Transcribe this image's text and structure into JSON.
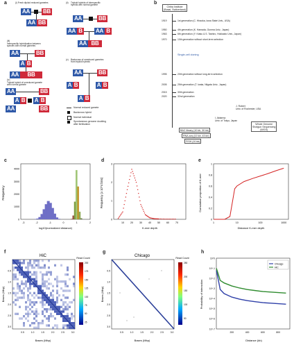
{
  "panel_a": {
    "label": "a",
    "sub_i": "(i)",
    "sub_i_text": "Fresh diploid reduced gametes",
    "sub_ii": "(ii)",
    "sub_ii_text": "Triploid hybrids of interspecific\nhybrids with normal gamete",
    "sub_iii": "(iii)",
    "sub_iii_text": "Interspecific hybridization between\nspecies with normal gametes",
    "sub_iv": "(iv)",
    "sub_iv_text": "Triploid hybrid of unreduced gamete\nwith normal gamete",
    "sub_v": "(v)",
    "sub_v_text": "Backcross of unreduced gametes\nfrom triploid hybrids",
    "legend": {
      "l1": "Normal reduced gamete",
      "l2": "Backcross hybrid",
      "l3": "Normal individual",
      "l4": "Spontaneous genome doubling\nafter fertilization"
    }
  },
  "panel_b": {
    "label": "b",
    "header": "Chiba Institute\n(Bosai, Switzerland)",
    "timeline": [
      {
        "year": "1919",
        "text": "1st generation (C. Hiraoka, Iowa State Univ., USA)"
      },
      {
        "year": "1950",
        "text": "4th generation (K. Hamada, Gunma Univ., Japan)"
      },
      {
        "year": "1963",
        "text": "6th generation (Y. Katsu & S. Tashiro, Hokkaido Univ., Japan)"
      },
      {
        "year": "1970",
        "text": "10th generation without short-term selection"
      },
      {
        "year": "1995",
        "text": "20th generation without long-term selection"
      },
      {
        "year": "2005",
        "text": "25th generation (T. Iwata, Niigata Univ., Japan)"
      },
      {
        "year": "2015",
        "text": "30th generation"
      },
      {
        "year": "2020",
        "text": "32nd generation"
      }
    ],
    "middle_note": "Single-cell cloning",
    "side_note_1": "J. Robert\nUniv. of Rochester, USA",
    "side_note_2": "I. Aktarma\nUniv. of Tokyo, Japan",
    "side_note_3": "Whole Genome\nShotgun Sequencing\n(WGS)",
    "methods": [
      "BAC library (10 kb, 30 kb)",
      "RNA-seq (10 kb, 43 kb)",
      "FISH (10 kb)"
    ]
  },
  "panel_c": {
    "label": "c",
    "ylabel": "Frequency",
    "xlabel": "log10(normalized distance)",
    "yticks": [
      "0",
      "1000",
      "2000",
      "3000",
      "4000"
    ],
    "xticks": [
      "-3",
      "-2",
      "-1",
      "0",
      "1",
      "2"
    ]
  },
  "panel_d": {
    "label": "d",
    "ylabel": "Frequency (x 10^4 bins)",
    "xlabel": "K-mer depth",
    "yticks": [
      "0",
      "1",
      "2",
      "3"
    ],
    "xticks": [
      "10",
      "20",
      "30",
      "40",
      "50",
      "60",
      "70"
    ]
  },
  "panel_e": {
    "label": "e",
    "ylabel": "Cumulative proportion of K-mer",
    "xlabel": "Distance K-mer depth",
    "yticks": [
      "0",
      "0.2",
      "0.4",
      "0.6",
      "0.8",
      "1"
    ],
    "xticks": [
      "1",
      "10",
      "100",
      "1000"
    ]
  },
  "panel_f": {
    "label": "f",
    "title": "HiC",
    "ylabel": "Bases (Mbp)",
    "xlabel": "Bases (Mbp)",
    "legend_title": "Read Count",
    "ticks": [
      "0.5",
      "1.0",
      "1.5",
      "2.0",
      "2.5",
      "3.0"
    ],
    "cbar_ticks": [
      "200",
      "175",
      "150",
      "125",
      "100",
      "75",
      "50",
      "25"
    ]
  },
  "panel_g": {
    "label": "g",
    "title": "Chicago",
    "ylabel": "Bases (Mbp)",
    "xlabel": "Bases (Mbp)",
    "legend_title": "Read Count",
    "ticks": [
      "0.5",
      "1.0",
      "1.5",
      "2.0",
      "2.5",
      "3.0"
    ],
    "cbar_ticks": [
      "250",
      "200",
      "150",
      "100",
      "50"
    ]
  },
  "panel_h": {
    "label": "h",
    "ylabel": "Probability of interaction",
    "xlabel": "Distance (kb)",
    "legend": [
      "Chicago",
      "HiC"
    ],
    "yticks": [
      "10^0",
      "10^-1",
      "10^-2",
      "10^-3",
      "10^-4",
      "10^-5",
      "10^-6",
      "10^-7"
    ],
    "xticks": [
      "200",
      "400",
      "600",
      "800"
    ],
    "colors": {
      "chicago": "#2e3fa8",
      "hic": "#2e8b2e"
    }
  },
  "genomes": {
    "aa": "AA",
    "bb": "BB",
    "ab": "AB",
    "abb": "ABB",
    "aab": "AAB",
    "a": "A",
    "b": "B"
  },
  "chart_data": [
    {
      "type": "bar",
      "panel": "c",
      "series": [
        {
          "name": "",
          "values": [
            20,
            60,
            180,
            420,
            800,
            1200,
            1450,
            1300,
            900,
            450,
            150,
            40
          ]
        },
        {
          "name": "",
          "values": [
            40,
            300,
            1400,
            3900,
            2600,
            600,
            80
          ]
        }
      ],
      "xlim": [
        -3.2,
        2
      ],
      "ylim": [
        0,
        4400
      ]
    },
    {
      "type": "scatter",
      "panel": "d",
      "x": [
        5,
        10,
        15,
        20,
        25,
        30,
        35,
        40,
        45,
        50,
        60,
        70
      ],
      "y": [
        0.05,
        0.4,
        1.6,
        2.7,
        2.0,
        0.8,
        0.25,
        0.08,
        0.03,
        0.02,
        0.01,
        0.01
      ],
      "ylim": [
        0,
        3
      ]
    },
    {
      "type": "line",
      "panel": "e",
      "x": [
        1,
        3,
        5,
        8,
        10,
        20,
        50,
        100,
        200,
        500,
        1000
      ],
      "y": [
        0.0,
        0.0,
        0.05,
        0.55,
        0.6,
        0.68,
        0.74,
        0.78,
        0.82,
        0.88,
        0.92
      ],
      "ylim": [
        0,
        1
      ]
    },
    {
      "type": "line",
      "panel": "h",
      "series": [
        {
          "name": "Chicago",
          "x": [
            1,
            50,
            100,
            200,
            300,
            400,
            500,
            600,
            700,
            800,
            900
          ],
          "y": [
            -1.2,
            -3.1,
            -3.5,
            -3.85,
            -4.05,
            -4.2,
            -4.3,
            -4.4,
            -4.45,
            -4.5,
            -4.55
          ]
        },
        {
          "name": "HiC",
          "x": [
            1,
            50,
            100,
            200,
            300,
            400,
            500,
            600,
            700,
            800,
            900
          ],
          "y": [
            -1.0,
            -2.2,
            -2.45,
            -2.75,
            -2.95,
            -3.1,
            -3.2,
            -3.3,
            -3.35,
            -3.4,
            -3.45
          ]
        }
      ],
      "ylim": [
        -7,
        0
      ],
      "xlim": [
        0,
        950
      ]
    }
  ]
}
